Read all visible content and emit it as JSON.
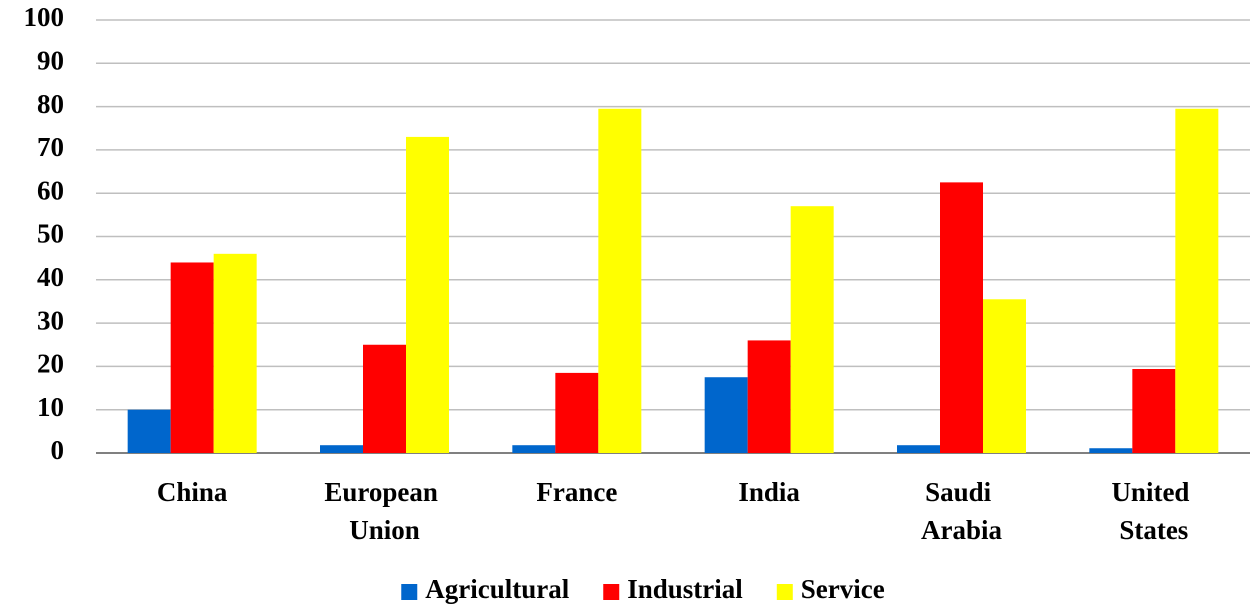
{
  "chart_data": {
    "type": "bar",
    "categories": [
      "China",
      "European Union",
      "France",
      "India",
      "Saudi Arabia",
      "United States"
    ],
    "series": [
      {
        "name": "Agricultural",
        "color": "#0066cc",
        "values": [
          10,
          1.8,
          1.8,
          17.5,
          1.8,
          1.1
        ]
      },
      {
        "name": "Industrial",
        "color": "#ff0000",
        "values": [
          44,
          25,
          18.5,
          26,
          62.5,
          19.4
        ]
      },
      {
        "name": "Service",
        "color": "#ffff00",
        "values": [
          46,
          73,
          79.5,
          57,
          35.5,
          79.5
        ]
      }
    ],
    "ylim": [
      0,
      100
    ],
    "yticks": [
      0,
      10,
      20,
      30,
      40,
      50,
      60,
      70,
      80,
      90,
      100
    ],
    "grid": true,
    "legend": "bottom"
  }
}
